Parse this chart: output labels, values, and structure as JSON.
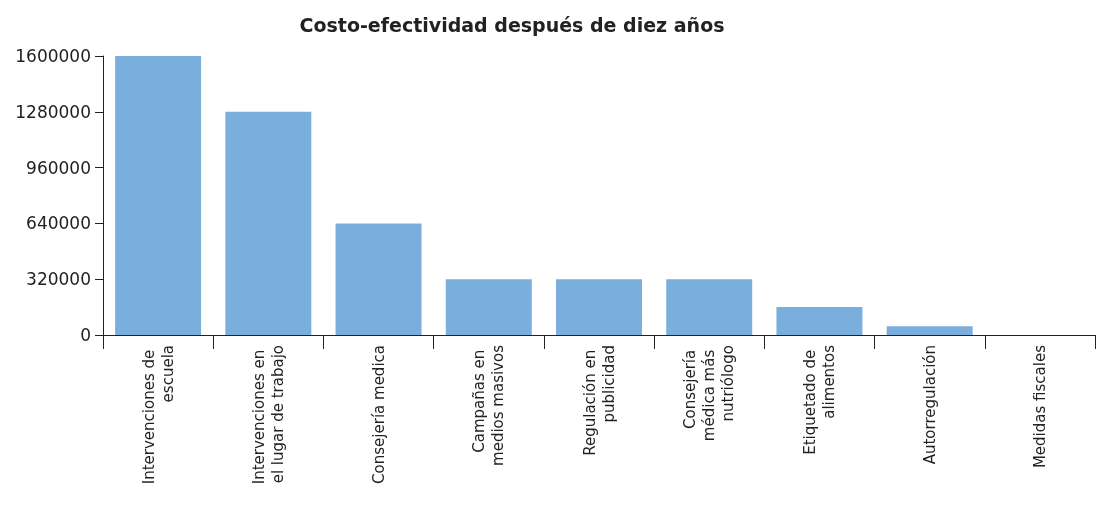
{
  "chart_data": {
    "type": "bar",
    "title": "Costo-efectividad después de diez años",
    "categories": [
      "Intervenciones de escuela",
      "Intervenciones en el lugar de trabajo",
      "Consejería medica",
      "Campañas en medios masivos",
      "Regulación en publicidad",
      "Consejería médica más nutriólogo",
      "Etiquetado de alimentos",
      "Autorregulación",
      "Medidas fiscales"
    ],
    "values": [
      1600000,
      1280000,
      640000,
      320000,
      320000,
      320000,
      160000,
      50000,
      0
    ],
    "color": "#7aaedc",
    "ylim": [
      0,
      1600000
    ],
    "yticks": [
      0,
      320000,
      640000,
      960000,
      1280000,
      1600000
    ],
    "grid": false
  }
}
